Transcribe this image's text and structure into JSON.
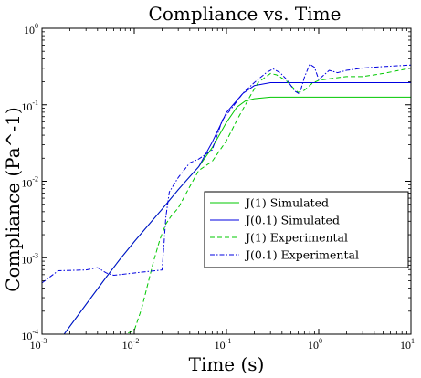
{
  "chart_data": {
    "type": "line",
    "title": "Compliance vs. Time",
    "xlabel": "Time (s)",
    "ylabel": "Compliance (Pa^-1)",
    "xscale": "log",
    "yscale": "log",
    "xlim": [
      0.001,
      10
    ],
    "ylim": [
      0.0001,
      1
    ],
    "x_ticks": [
      {
        "base": "10",
        "exp": "-3"
      },
      {
        "base": "10",
        "exp": "-2"
      },
      {
        "base": "10",
        "exp": "-1"
      },
      {
        "base": "10",
        "exp": "0"
      },
      {
        "base": "10",
        "exp": "1"
      }
    ],
    "y_ticks": [
      {
        "base": "10",
        "exp": "-4"
      },
      {
        "base": "10",
        "exp": "-3"
      },
      {
        "base": "10",
        "exp": "-2"
      },
      {
        "base": "10",
        "exp": "-1"
      },
      {
        "base": "10",
        "exp": "0"
      }
    ],
    "grid": false,
    "legend_position": "lower-right",
    "series": [
      {
        "name": "J(1) Simulated",
        "color": "#00c800",
        "style": "solid",
        "points": [
          [
            0.001,
            4.07e-05
          ],
          [
            0.002,
            0.000126
          ],
          [
            0.003,
            0.000245
          ],
          [
            0.005,
            0.000562
          ],
          [
            0.007,
            0.000955
          ],
          [
            0.01,
            0.00162
          ],
          [
            0.015,
            0.00288
          ],
          [
            0.02,
            0.0043
          ],
          [
            0.03,
            0.00776
          ],
          [
            0.04,
            0.0115
          ],
          [
            0.05,
            0.0155
          ],
          [
            0.07,
            0.0275
          ],
          [
            0.1,
            0.0589
          ],
          [
            0.13,
            0.0933
          ],
          [
            0.16,
            0.112
          ],
          [
            0.2,
            0.12
          ],
          [
            0.3,
            0.126
          ],
          [
            0.5,
            0.126
          ],
          [
            1,
            0.126
          ],
          [
            3,
            0.126
          ],
          [
            10,
            0.126
          ]
        ]
      },
      {
        "name": "J(0.1) Simulated",
        "color": "#0000e0",
        "style": "solid",
        "points": [
          [
            0.001,
            4.07e-05
          ],
          [
            0.002,
            0.000126
          ],
          [
            0.003,
            0.000245
          ],
          [
            0.005,
            0.000562
          ],
          [
            0.007,
            0.000955
          ],
          [
            0.01,
            0.00162
          ],
          [
            0.015,
            0.00288
          ],
          [
            0.02,
            0.0043
          ],
          [
            0.03,
            0.00776
          ],
          [
            0.04,
            0.0115
          ],
          [
            0.05,
            0.0155
          ],
          [
            0.07,
            0.0324
          ],
          [
            0.1,
            0.0794
          ],
          [
            0.15,
            0.14
          ],
          [
            0.2,
            0.178
          ],
          [
            0.3,
            0.195
          ],
          [
            0.5,
            0.195
          ],
          [
            1,
            0.195
          ],
          [
            3,
            0.195
          ],
          [
            10,
            0.195
          ]
        ]
      },
      {
        "name": "J(1) Experimental",
        "color": "#00c800",
        "style": "dashed",
        "points": [
          [
            0.005,
            0.0001
          ],
          [
            0.008,
            0.0001
          ],
          [
            0.01,
            0.000112
          ],
          [
            0.012,
            0.000214
          ],
          [
            0.014,
            0.000447
          ],
          [
            0.016,
            0.000851
          ],
          [
            0.019,
            0.00174
          ],
          [
            0.022,
            0.00275
          ],
          [
            0.025,
            0.00347
          ],
          [
            0.03,
            0.00447
          ],
          [
            0.04,
            0.0085
          ],
          [
            0.05,
            0.0138
          ],
          [
            0.07,
            0.0182
          ],
          [
            0.1,
            0.0339
          ],
          [
            0.13,
            0.0631
          ],
          [
            0.18,
            0.129
          ],
          [
            0.22,
            0.195
          ],
          [
            0.25,
            0.219
          ],
          [
            0.3,
            0.257
          ],
          [
            0.35,
            0.246
          ],
          [
            0.45,
            0.204
          ],
          [
            0.55,
            0.158
          ],
          [
            0.6,
            0.145
          ],
          [
            0.7,
            0.155
          ],
          [
            0.85,
            0.191
          ],
          [
            1,
            0.209
          ],
          [
            1.3,
            0.219
          ],
          [
            2,
            0.234
          ],
          [
            3,
            0.234
          ],
          [
            5,
            0.257
          ],
          [
            10,
            0.302
          ]
        ]
      },
      {
        "name": "J(0.1) Experimental",
        "color": "#0000e0",
        "style": "dashdot",
        "points": [
          [
            0.001,
            0.000468
          ],
          [
            0.0015,
            0.000676
          ],
          [
            0.003,
            0.000692
          ],
          [
            0.004,
            0.000741
          ],
          [
            0.005,
            0.00063
          ],
          [
            0.006,
            0.000589
          ],
          [
            0.02,
            0.000692
          ],
          [
            0.021,
            0.00148
          ],
          [
            0.022,
            0.00339
          ],
          [
            0.024,
            0.00724
          ],
          [
            0.03,
            0.0112
          ],
          [
            0.04,
            0.0174
          ],
          [
            0.05,
            0.0195
          ],
          [
            0.07,
            0.0257
          ],
          [
            0.09,
            0.063
          ],
          [
            0.12,
            0.0977
          ],
          [
            0.15,
            0.141
          ],
          [
            0.2,
            0.195
          ],
          [
            0.27,
            0.263
          ],
          [
            0.32,
            0.295
          ],
          [
            0.38,
            0.264
          ],
          [
            0.45,
            0.214
          ],
          [
            0.55,
            0.151
          ],
          [
            0.62,
            0.138
          ],
          [
            0.7,
            0.229
          ],
          [
            0.8,
            0.339
          ],
          [
            0.9,
            0.309
          ],
          [
            1,
            0.214
          ],
          [
            1.3,
            0.282
          ],
          [
            1.6,
            0.263
          ],
          [
            2,
            0.282
          ],
          [
            3,
            0.302
          ],
          [
            5,
            0.316
          ],
          [
            10,
            0.331
          ]
        ]
      }
    ]
  }
}
